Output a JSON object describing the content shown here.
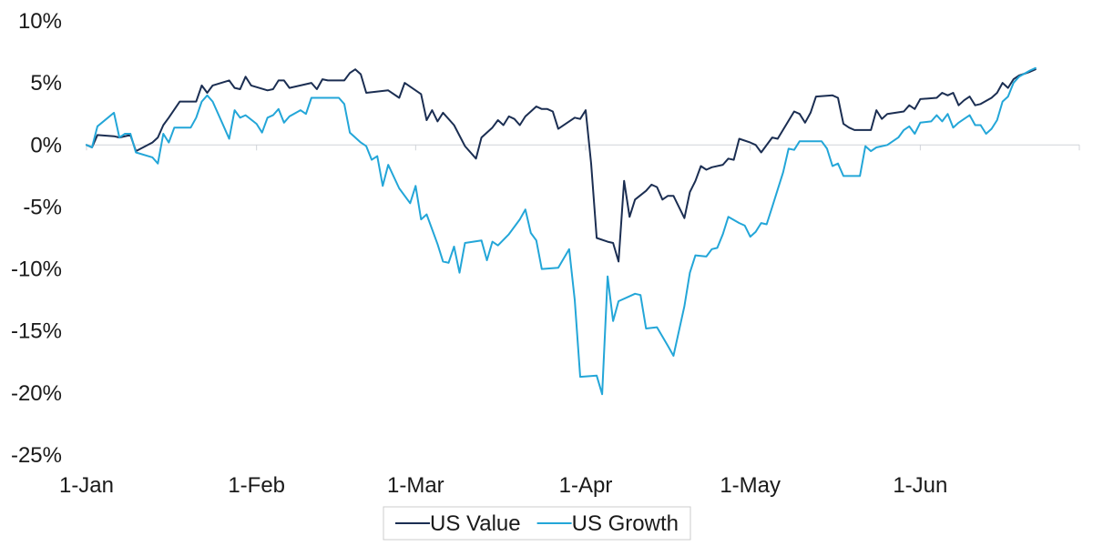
{
  "chart_data": {
    "type": "line",
    "title": "",
    "xlabel": "",
    "ylabel": "",
    "ylim": [
      -25,
      10
    ],
    "xlim": [
      0,
      181
    ],
    "y_ticks": [
      {
        "value": 10,
        "label": "10%"
      },
      {
        "value": 5,
        "label": "5%"
      },
      {
        "value": 0,
        "label": "0%"
      },
      {
        "value": -5,
        "label": "-5%"
      },
      {
        "value": -10,
        "label": "-10%"
      },
      {
        "value": -15,
        "label": "-15%"
      },
      {
        "value": -20,
        "label": "-20%"
      },
      {
        "value": -25,
        "label": "-25%"
      }
    ],
    "x_ticks": [
      {
        "value": 0,
        "label": "1-Jan"
      },
      {
        "value": 31,
        "label": "1-Feb"
      },
      {
        "value": 60,
        "label": "1-Mar"
      },
      {
        "value": 91,
        "label": "1-Apr"
      },
      {
        "value": 121,
        "label": "1-May"
      },
      {
        "value": 152,
        "label": "1-Jun"
      }
    ],
    "legend_position": "bottom-center",
    "series": [
      {
        "name": "US Value",
        "color": "#1b2e52",
        "points": [
          [
            0,
            0
          ],
          [
            1,
            -0.2
          ],
          [
            2,
            0.8
          ],
          [
            5,
            0.7
          ],
          [
            6,
            0.6
          ],
          [
            8,
            0.8
          ],
          [
            9,
            -0.5
          ],
          [
            12,
            0.2
          ],
          [
            13,
            0.6
          ],
          [
            14,
            1.6
          ],
          [
            15,
            2.2
          ],
          [
            17,
            3.5
          ],
          [
            18,
            3.5
          ],
          [
            19,
            3.5
          ],
          [
            20,
            3.5
          ],
          [
            21,
            4.8
          ],
          [
            22,
            4.2
          ],
          [
            23,
            4.8
          ],
          [
            26,
            5.2
          ],
          [
            27,
            4.6
          ],
          [
            28,
            4.5
          ],
          [
            29,
            5.5
          ],
          [
            30,
            4.8
          ],
          [
            33,
            4.4
          ],
          [
            34,
            4.5
          ],
          [
            35,
            5.2
          ],
          [
            36,
            5.2
          ],
          [
            37,
            4.6
          ],
          [
            40,
            4.9
          ],
          [
            41,
            5.0
          ],
          [
            42,
            4.5
          ],
          [
            43,
            5.3
          ],
          [
            44,
            5.2
          ],
          [
            46,
            5.2
          ],
          [
            47,
            5.2
          ],
          [
            48,
            5.8
          ],
          [
            49,
            6.1
          ],
          [
            50,
            5.7
          ],
          [
            51,
            4.2
          ],
          [
            55,
            4.4
          ],
          [
            57,
            3.8
          ],
          [
            58,
            5.0
          ],
          [
            61,
            4.1
          ],
          [
            62,
            2.0
          ],
          [
            63,
            2.8
          ],
          [
            64,
            1.9
          ],
          [
            65,
            2.6
          ],
          [
            67,
            1.6
          ],
          [
            69,
            -0.1
          ],
          [
            71,
            -1.1
          ],
          [
            72,
            0.6
          ],
          [
            74,
            1.4
          ],
          [
            75,
            2.0
          ],
          [
            76,
            1.6
          ],
          [
            77,
            2.3
          ],
          [
            78,
            2.1
          ],
          [
            79,
            1.6
          ],
          [
            80,
            2.3
          ],
          [
            81,
            2.7
          ],
          [
            82,
            3.1
          ],
          [
            83,
            2.9
          ],
          [
            84,
            2.9
          ],
          [
            85,
            2.7
          ],
          [
            86,
            1.3
          ],
          [
            89,
            2.2
          ],
          [
            90,
            2.1
          ],
          [
            91,
            2.8
          ],
          [
            92,
            -1.5
          ],
          [
            93,
            -7.5
          ],
          [
            95,
            -7.8
          ],
          [
            96,
            -7.9
          ],
          [
            97,
            -9.4
          ],
          [
            98,
            -2.9
          ],
          [
            99,
            -5.8
          ],
          [
            100,
            -4.4
          ],
          [
            102,
            -3.7
          ],
          [
            103,
            -3.2
          ],
          [
            104,
            -3.4
          ],
          [
            105,
            -4.4
          ],
          [
            106,
            -4.1
          ],
          [
            107,
            -4.1
          ],
          [
            109,
            -5.9
          ],
          [
            110,
            -3.8
          ],
          [
            111,
            -2.9
          ],
          [
            112,
            -1.7
          ],
          [
            113,
            -2.0
          ],
          [
            114,
            -1.8
          ],
          [
            116,
            -1.6
          ],
          [
            117,
            -1.1
          ],
          [
            118,
            -1.2
          ],
          [
            119,
            0.5
          ],
          [
            121,
            0.2
          ],
          [
            122,
            0.0
          ],
          [
            123,
            -0.6
          ],
          [
            125,
            0.6
          ],
          [
            126,
            0.5
          ],
          [
            129,
            2.7
          ],
          [
            130,
            2.5
          ],
          [
            131,
            1.8
          ],
          [
            132,
            2.6
          ],
          [
            133,
            3.9
          ],
          [
            136,
            4.0
          ],
          [
            137,
            3.8
          ],
          [
            138,
            1.7
          ],
          [
            139,
            1.4
          ],
          [
            140,
            1.2
          ],
          [
            142,
            1.2
          ],
          [
            143,
            1.2
          ],
          [
            144,
            2.8
          ],
          [
            145,
            2.1
          ],
          [
            146,
            2.5
          ],
          [
            149,
            2.7
          ],
          [
            150,
            3.2
          ],
          [
            151,
            2.9
          ],
          [
            152,
            3.7
          ],
          [
            155,
            3.8
          ],
          [
            156,
            4.2
          ],
          [
            157,
            4.0
          ],
          [
            158,
            4.2
          ],
          [
            159,
            3.2
          ],
          [
            160,
            3.6
          ],
          [
            161,
            3.9
          ],
          [
            162,
            3.2
          ],
          [
            163,
            3.3
          ],
          [
            165,
            3.8
          ],
          [
            166,
            4.2
          ],
          [
            167,
            5.0
          ],
          [
            168,
            4.6
          ],
          [
            169,
            5.3
          ],
          [
            170,
            5.6
          ],
          [
            172,
            5.9
          ],
          [
            173,
            6.1
          ]
        ]
      },
      {
        "name": "US Growth",
        "color": "#23a6d8",
        "points": [
          [
            0,
            0
          ],
          [
            1,
            -0.2
          ],
          [
            2,
            1.5
          ],
          [
            5,
            2.6
          ],
          [
            6,
            0.6
          ],
          [
            7,
            0.9
          ],
          [
            8,
            0.9
          ],
          [
            9,
            -0.6
          ],
          [
            12,
            -1.0
          ],
          [
            13,
            -1.5
          ],
          [
            14,
            0.9
          ],
          [
            15,
            0.2
          ],
          [
            16,
            1.4
          ],
          [
            19,
            1.4
          ],
          [
            20,
            2.2
          ],
          [
            21,
            3.5
          ],
          [
            22,
            4.0
          ],
          [
            23,
            3.5
          ],
          [
            25,
            1.5
          ],
          [
            26,
            0.5
          ],
          [
            27,
            2.8
          ],
          [
            28,
            2.2
          ],
          [
            29,
            2.4
          ],
          [
            31,
            1.7
          ],
          [
            32,
            1.0
          ],
          [
            33,
            2.2
          ],
          [
            34,
            2.4
          ],
          [
            35,
            2.9
          ],
          [
            36,
            1.8
          ],
          [
            37,
            2.3
          ],
          [
            39,
            2.8
          ],
          [
            40,
            2.5
          ],
          [
            41,
            3.8
          ],
          [
            45,
            3.8
          ],
          [
            46,
            3.8
          ],
          [
            47,
            3.3
          ],
          [
            48,
            1.0
          ],
          [
            50,
            0.2
          ],
          [
            51,
            -0.1
          ],
          [
            52,
            -1.2
          ],
          [
            53,
            -0.9
          ],
          [
            54,
            -3.3
          ],
          [
            55,
            -1.6
          ],
          [
            57,
            -3.5
          ],
          [
            59,
            -4.7
          ],
          [
            60,
            -3.3
          ],
          [
            61,
            -6.0
          ],
          [
            62,
            -5.6
          ],
          [
            64,
            -8.0
          ],
          [
            65,
            -9.4
          ],
          [
            66,
            -9.5
          ],
          [
            67,
            -8.2
          ],
          [
            68,
            -10.3
          ],
          [
            69,
            -7.9
          ],
          [
            72,
            -7.7
          ],
          [
            73,
            -9.3
          ],
          [
            74,
            -7.8
          ],
          [
            75,
            -8.1
          ],
          [
            77,
            -7.2
          ],
          [
            79,
            -6.0
          ],
          [
            80,
            -5.2
          ],
          [
            81,
            -7.1
          ],
          [
            82,
            -7.7
          ],
          [
            83,
            -10.0
          ],
          [
            86,
            -9.9
          ],
          [
            88,
            -8.4
          ],
          [
            89,
            -12.5
          ],
          [
            90,
            -18.7
          ],
          [
            93,
            -18.6
          ],
          [
            94,
            -20.1
          ],
          [
            95,
            -10.6
          ],
          [
            96,
            -14.2
          ],
          [
            97,
            -12.6
          ],
          [
            99,
            -12.2
          ],
          [
            100,
            -12.0
          ],
          [
            101,
            -12.1
          ],
          [
            102,
            -14.8
          ],
          [
            104,
            -14.7
          ],
          [
            106,
            -16.2
          ],
          [
            107,
            -17.0
          ],
          [
            108,
            -15.0
          ],
          [
            109,
            -13.0
          ],
          [
            110,
            -10.3
          ],
          [
            111,
            -8.9
          ],
          [
            113,
            -9.0
          ],
          [
            114,
            -8.4
          ],
          [
            115,
            -8.3
          ],
          [
            116,
            -7.2
          ],
          [
            117,
            -5.8
          ],
          [
            119,
            -6.3
          ],
          [
            120,
            -6.5
          ],
          [
            121,
            -7.4
          ],
          [
            122,
            -7.0
          ],
          [
            123,
            -6.3
          ],
          [
            124,
            -6.4
          ],
          [
            125,
            -5.0
          ],
          [
            126,
            -3.6
          ],
          [
            127,
            -2.2
          ],
          [
            128,
            -0.3
          ],
          [
            129,
            -0.4
          ],
          [
            130,
            0.3
          ],
          [
            132,
            0.3
          ],
          [
            134,
            0.3
          ],
          [
            135,
            -0.3
          ],
          [
            136,
            -1.7
          ],
          [
            137,
            -1.5
          ],
          [
            138,
            -2.5
          ],
          [
            141,
            -2.5
          ],
          [
            142,
            -0.1
          ],
          [
            143,
            -0.5
          ],
          [
            144,
            -0.2
          ],
          [
            146,
            0.0
          ],
          [
            148,
            0.6
          ],
          [
            149,
            1.2
          ],
          [
            150,
            1.5
          ],
          [
            151,
            0.9
          ],
          [
            152,
            1.8
          ],
          [
            154,
            1.9
          ],
          [
            155,
            2.4
          ],
          [
            156,
            1.9
          ],
          [
            157,
            2.5
          ],
          [
            158,
            1.4
          ],
          [
            159,
            1.8
          ],
          [
            160,
            2.1
          ],
          [
            161,
            2.4
          ],
          [
            162,
            1.6
          ],
          [
            163,
            1.6
          ],
          [
            164,
            0.9
          ],
          [
            165,
            1.3
          ],
          [
            166,
            2.0
          ],
          [
            167,
            3.5
          ],
          [
            168,
            3.9
          ],
          [
            169,
            5.0
          ],
          [
            170,
            5.5
          ],
          [
            172,
            6.0
          ],
          [
            173,
            6.2
          ]
        ]
      }
    ]
  }
}
